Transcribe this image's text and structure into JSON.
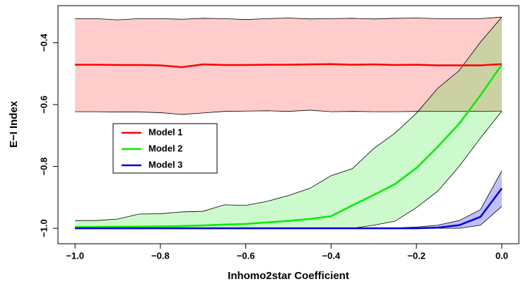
{
  "chart_data": {
    "type": "line",
    "x_label": "Inhomo2star Coefficient",
    "y_label": "E−I Index",
    "x": [
      -1.0,
      -0.95,
      -0.9,
      -0.85,
      -0.8,
      -0.75,
      -0.7,
      -0.65,
      -0.6,
      -0.55,
      -0.5,
      -0.45,
      -0.4,
      -0.35,
      -0.3,
      -0.25,
      -0.2,
      -0.15,
      -0.1,
      -0.05,
      0.0
    ],
    "series": [
      {
        "name": "Model 1",
        "color": "#ff0000",
        "band_color": "rgba(255,0,0,0.2)",
        "values": [
          -0.471,
          -0.471,
          -0.472,
          -0.472,
          -0.473,
          -0.479,
          -0.47,
          -0.472,
          -0.472,
          -0.471,
          -0.471,
          -0.47,
          -0.469,
          -0.471,
          -0.47,
          -0.472,
          -0.471,
          -0.473,
          -0.473,
          -0.473,
          -0.469
        ],
        "upper": [
          -0.322,
          -0.322,
          -0.326,
          -0.322,
          -0.322,
          -0.324,
          -0.321,
          -0.322,
          -0.325,
          -0.322,
          -0.32,
          -0.323,
          -0.322,
          -0.321,
          -0.323,
          -0.321,
          -0.32,
          -0.322,
          -0.322,
          -0.322,
          -0.317
        ],
        "lower": [
          -0.623,
          -0.623,
          -0.624,
          -0.624,
          -0.626,
          -0.632,
          -0.627,
          -0.622,
          -0.621,
          -0.62,
          -0.622,
          -0.618,
          -0.623,
          -0.622,
          -0.623,
          -0.623,
          -0.622,
          -0.622,
          -0.622,
          -0.622,
          -0.621
        ]
      },
      {
        "name": "Model 2",
        "color": "#00ee00",
        "band_color": "rgba(0,230,0,0.2)",
        "values": [
          -0.996,
          -0.996,
          -0.995,
          -0.995,
          -0.994,
          -0.993,
          -0.991,
          -0.988,
          -0.986,
          -0.981,
          -0.976,
          -0.97,
          -0.961,
          -0.926,
          -0.892,
          -0.857,
          -0.805,
          -0.736,
          -0.662,
          -0.57,
          -0.471
        ],
        "upper": [
          -0.975,
          -0.975,
          -0.97,
          -0.954,
          -0.953,
          -0.947,
          -0.945,
          -0.924,
          -0.926,
          -0.913,
          -0.894,
          -0.871,
          -0.83,
          -0.807,
          -0.742,
          -0.692,
          -0.628,
          -0.547,
          -0.49,
          -0.398,
          -0.317
        ],
        "lower": [
          -1.0,
          -1.0,
          -1.0,
          -1.0,
          -1.0,
          -1.0,
          -1.0,
          -1.0,
          -1.0,
          -1.0,
          -1.0,
          -1.0,
          -1.0,
          -1.0,
          -0.99,
          -0.977,
          -0.933,
          -0.88,
          -0.8,
          -0.708,
          -0.621
        ]
      },
      {
        "name": "Model 3",
        "color": "#0000dd",
        "band_color": "rgba(0,0,230,0.25)",
        "values": [
          -1.0,
          -1.0,
          -1.0,
          -1.0,
          -1.0,
          -1.0,
          -1.0,
          -1.0,
          -1.0,
          -1.0,
          -1.0,
          -1.0,
          -1.0,
          -1.0,
          -1.0,
          -1.0,
          -1.0,
          -0.998,
          -0.99,
          -0.963,
          -0.871
        ],
        "upper": [
          -1.0,
          -1.0,
          -1.0,
          -1.0,
          -1.0,
          -1.0,
          -1.0,
          -1.0,
          -1.0,
          -1.0,
          -1.0,
          -1.0,
          -1.0,
          -1.0,
          -1.0,
          -0.999,
          -0.996,
          -0.99,
          -0.975,
          -0.94,
          -0.814
        ],
        "lower": [
          -1.0,
          -1.0,
          -1.0,
          -1.0,
          -1.0,
          -1.0,
          -1.0,
          -1.0,
          -1.0,
          -1.0,
          -1.0,
          -1.0,
          -1.0,
          -1.0,
          -1.0,
          -1.0,
          -1.0,
          -1.0,
          -1.0,
          -0.99,
          -0.929
        ]
      }
    ],
    "xlim": [
      -1.04,
      0.04
    ],
    "ylim": [
      -1.05,
      -0.28
    ],
    "xticks": [
      {
        "value": -1.0,
        "label": "−1.0"
      },
      {
        "value": -0.8,
        "label": "−0.8"
      },
      {
        "value": -0.6,
        "label": "−0.6"
      },
      {
        "value": -0.4,
        "label": "−0.4"
      },
      {
        "value": -0.2,
        "label": "−0.2"
      },
      {
        "value": 0.0,
        "label": "0.0"
      }
    ],
    "yticks": [
      {
        "value": -1.0,
        "label": "−1.0"
      },
      {
        "value": -0.8,
        "label": "−0.8"
      },
      {
        "value": -0.6,
        "label": "−0.6"
      },
      {
        "value": -0.4,
        "label": "−0.4"
      }
    ],
    "legend": "left"
  }
}
